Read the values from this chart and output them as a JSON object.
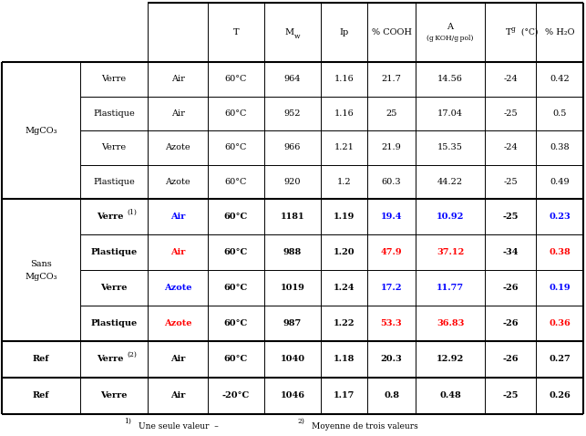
{
  "footnote_left": "Une seule valeur  –",
  "footnote_right": "Moyenne de trois valeurs",
  "row_groups": [
    {
      "group_label": "MgCO₃",
      "rows": [
        {
          "container": "Verre",
          "container_super": "",
          "atm": "Air",
          "atm_color": "black",
          "atm_bold": false,
          "T": "60°C",
          "Mw": "964",
          "Ip": "1.16",
          "COOH": "21.7",
          "A": "14.56",
          "Tg": "-24",
          "H2O": "0.42",
          "bold": false,
          "cooh_color": "black",
          "a_color": "black",
          "h2o_color": "black"
        },
        {
          "container": "Plastique",
          "container_super": "",
          "atm": "Air",
          "atm_color": "black",
          "atm_bold": false,
          "T": "60°C",
          "Mw": "952",
          "Ip": "1.16",
          "COOH": "25",
          "A": "17.04",
          "Tg": "-25",
          "H2O": "0.5",
          "bold": false,
          "cooh_color": "black",
          "a_color": "black",
          "h2o_color": "black"
        },
        {
          "container": "Verre",
          "container_super": "",
          "atm": "Azote",
          "atm_color": "black",
          "atm_bold": false,
          "T": "60°C",
          "Mw": "966",
          "Ip": "1.21",
          "COOH": "21.9",
          "A": "15.35",
          "Tg": "-24",
          "H2O": "0.38",
          "bold": false,
          "cooh_color": "black",
          "a_color": "black",
          "h2o_color": "black"
        },
        {
          "container": "Plastique",
          "container_super": "",
          "atm": "Azote",
          "atm_color": "black",
          "atm_bold": false,
          "T": "60°C",
          "Mw": "920",
          "Ip": "1.2",
          "COOH": "60.3",
          "A": "44.22",
          "Tg": "-25",
          "H2O": "0.49",
          "bold": false,
          "cooh_color": "black",
          "a_color": "black",
          "h2o_color": "black"
        }
      ]
    },
    {
      "group_label": "Sans\nMgCO₃",
      "rows": [
        {
          "container": "Verre",
          "container_super": "(1)",
          "atm": "Air",
          "atm_color": "blue",
          "atm_bold": true,
          "T": "60°C",
          "Mw": "1181",
          "Ip": "1.19",
          "COOH": "19.4",
          "A": "10.92",
          "Tg": "-25",
          "H2O": "0.23",
          "bold": true,
          "cooh_color": "blue",
          "a_color": "blue",
          "h2o_color": "blue"
        },
        {
          "container": "Plastique",
          "container_super": "",
          "atm": "Air",
          "atm_color": "red",
          "atm_bold": true,
          "T": "60°C",
          "Mw": "988",
          "Ip": "1.20",
          "COOH": "47.9",
          "A": "37.12",
          "Tg": "-34",
          "H2O": "0.38",
          "bold": true,
          "cooh_color": "red",
          "a_color": "red",
          "h2o_color": "red"
        },
        {
          "container": "Verre",
          "container_super": "",
          "atm": "Azote",
          "atm_color": "blue",
          "atm_bold": true,
          "T": "60°C",
          "Mw": "1019",
          "Ip": "1.24",
          "COOH": "17.2",
          "A": "11.77",
          "Tg": "-26",
          "H2O": "0.19",
          "bold": true,
          "cooh_color": "blue",
          "a_color": "blue",
          "h2o_color": "blue"
        },
        {
          "container": "Plastique",
          "container_super": "",
          "atm": "Azote",
          "atm_color": "red",
          "atm_bold": true,
          "T": "60°C",
          "Mw": "987",
          "Ip": "1.22",
          "COOH": "53.3",
          "A": "36.83",
          "Tg": "-26",
          "H2O": "0.36",
          "bold": true,
          "cooh_color": "red",
          "a_color": "red",
          "h2o_color": "red"
        }
      ]
    }
  ],
  "ref_rows": [
    {
      "group": "Ref",
      "container": "Verre",
      "container_super": "(2)",
      "atm": "Air",
      "atm_color": "black",
      "T": "60°C",
      "Mw": "1040",
      "Ip": "1.18",
      "COOH": "20.3",
      "A": "12.92",
      "Tg": "-26",
      "H2O": "0.27",
      "bold": true
    },
    {
      "group": "Ref",
      "container": "Verre",
      "container_super": "",
      "atm": "Air",
      "atm_color": "black",
      "T": "-20°C",
      "Mw": "1046",
      "Ip": "1.17",
      "COOH": "0.8",
      "A": "0.48",
      "Tg": "-25",
      "H2O": "0.26",
      "bold": true
    }
  ],
  "bg_color": "#ffffff",
  "lw_thick": 1.5,
  "lw_thin": 0.7,
  "fs_main": 7.0,
  "fs_super": 5.5,
  "fs_note": 6.5
}
